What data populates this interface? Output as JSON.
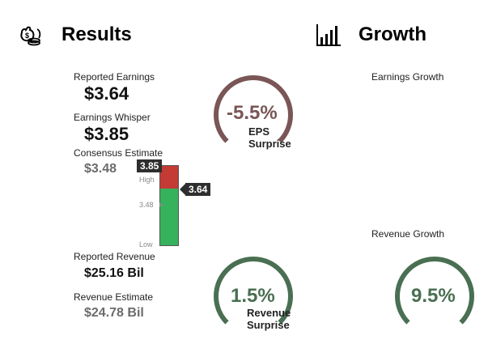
{
  "results": {
    "title": "Results",
    "icon": "money-bag-icon",
    "reported_earnings": {
      "label": "Reported Earnings",
      "value": "$3.64"
    },
    "earnings_whisper": {
      "label": "Earnings Whisper",
      "value": "$3.85"
    },
    "consensus_estimate": {
      "label": "Consensus Estimate",
      "value": "$3.48"
    },
    "reported_revenue": {
      "label": "Reported Revenue",
      "value": "$25.16 Bil"
    },
    "revenue_estimate": {
      "label": "Revenue Estimate",
      "value": "$24.78 Bil"
    },
    "range_bar": {
      "whisper_tag": "3.85",
      "actual_tag": "3.64",
      "high_label": "High",
      "consensus_label": "3.48",
      "low_label": "Low",
      "colors": {
        "red": "#c43a35",
        "green": "#36b25d",
        "border": "#555555"
      }
    },
    "eps_surprise": {
      "value": "-5.5%",
      "caption_line1": "EPS",
      "caption_line2": "Surprise",
      "fraction": 0.75,
      "color": "#7a5656"
    },
    "revenue_surprise": {
      "value": "1.5%",
      "caption_line1": "Revenue",
      "caption_line2": "Surprise",
      "fraction": 0.75,
      "color": "#4a6f52"
    }
  },
  "growth": {
    "title": "Growth",
    "icon": "bar-chart-icon",
    "earnings_growth": {
      "label": "Earnings Growth"
    },
    "revenue_growth": {
      "label": "Revenue Growth",
      "value": "9.5%",
      "fraction": 0.75,
      "color": "#4a6f52"
    }
  }
}
